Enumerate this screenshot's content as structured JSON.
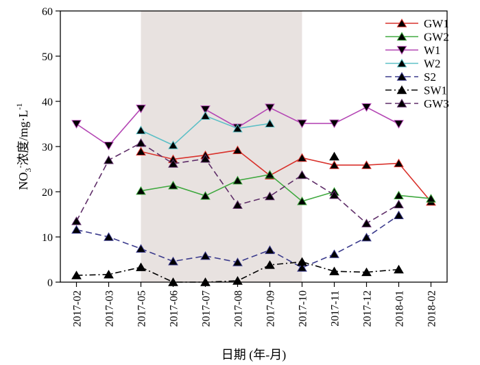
{
  "chart_data": {
    "type": "line",
    "categories": [
      "2017-02",
      "2017-03",
      "2017-05",
      "2017-06",
      "2017-07",
      "2017-08",
      "2017-09",
      "2017-10",
      "2017-11",
      "2017-12",
      "2018-01",
      "2018-02"
    ],
    "xlabel": "日期 (年-月)",
    "ylabel_main": "NO",
    "ylabel_sub": "3",
    "ylabel_sup": "-",
    "ylabel_rest": "浓度/mg·L",
    "ylabel_exp": "-1",
    "ylim": [
      0,
      60
    ],
    "yticks": [
      0,
      10,
      20,
      30,
      40,
      50,
      60
    ],
    "shaded_range": [
      "2017-05",
      "2017-10"
    ],
    "shaded_color": "#e8e2e0",
    "grid": false,
    "legend_position": "top-right",
    "series": [
      {
        "name": "GW1",
        "color": "#d9312b",
        "dash": "solid",
        "marker": "triangle-up",
        "values": [
          null,
          null,
          28.9,
          27.2,
          28.1,
          29.2,
          23.6,
          27.5,
          25.9,
          25.9,
          26.3,
          17.8
        ]
      },
      {
        "name": "GW2",
        "color": "#3ea83e",
        "dash": "solid",
        "marker": "triangle-up",
        "values": [
          null,
          null,
          20.2,
          21.4,
          19.1,
          22.5,
          23.8,
          17.9,
          20.0,
          null,
          19.2,
          18.5
        ]
      },
      {
        "name": "W1",
        "color": "#b446b4",
        "dash": "solid",
        "marker": "triangle-down",
        "values": [
          35.0,
          30.2,
          38.4,
          null,
          38.2,
          34.2,
          38.6,
          35.1,
          35.1,
          38.7,
          35.0,
          null
        ]
      },
      {
        "name": "W2",
        "color": "#5bbfc6",
        "dash": "solid",
        "marker": "triangle-up",
        "values": [
          null,
          null,
          33.6,
          30.3,
          36.8,
          34.0,
          35.1,
          null,
          null,
          null,
          null,
          null
        ]
      },
      {
        "name": "S2",
        "color": "#3a3a8c",
        "dash": "dash",
        "marker": "triangle-up",
        "values": [
          11.6,
          10.0,
          7.4,
          4.6,
          5.8,
          4.4,
          7.1,
          3.2,
          6.2,
          9.9,
          14.8,
          null
        ]
      },
      {
        "name": "SW1",
        "color": "#000000",
        "dash": "dashdot",
        "marker": "triangle-up",
        "values": [
          1.5,
          1.7,
          3.3,
          0.0,
          0.0,
          0.3,
          3.8,
          4.5,
          2.4,
          2.2,
          2.8,
          null
        ]
      },
      {
        "name": "GW3",
        "color": "#5e2d68",
        "dash": "dash",
        "marker": "triangle-up",
        "values": [
          13.5,
          27.0,
          30.8,
          26.2,
          27.3,
          17.1,
          19.0,
          23.7,
          19.3,
          13.0,
          17.2,
          null
        ]
      }
    ],
    "extra_markers": [
      {
        "category": "2017-11",
        "value": 27.8,
        "color": "#000000"
      }
    ]
  }
}
